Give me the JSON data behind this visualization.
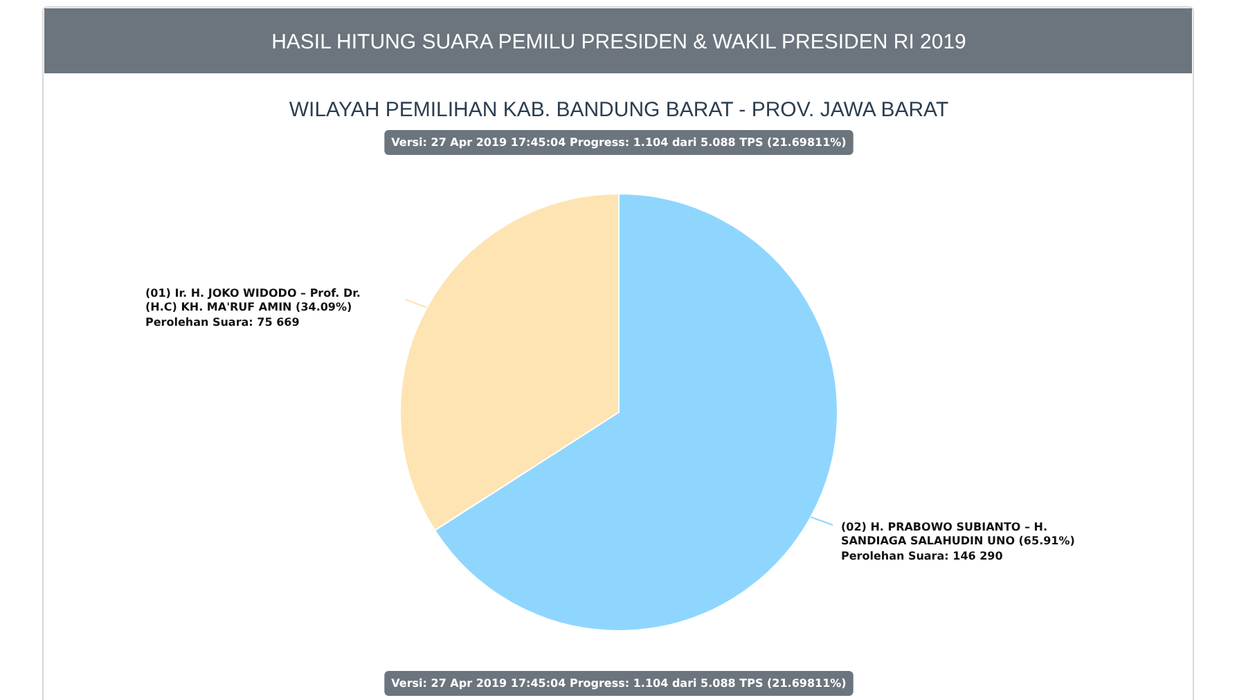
{
  "chart_data": {
    "type": "pie",
    "title": "HASIL HITUNG SUARA PEMILU PRESIDEN & WAKIL PRESIDEN RI 2019",
    "subtitle": "WILAYAH PEMILIHAN KAB. BANDUNG BARAT - PROV. JAWA BARAT",
    "categories": [
      "(01) Ir. H. JOKO WIDODO – Prof. Dr. (H.C) KH. MA'RUF AMIN (34.09%)",
      "(02) H. PRABOWO SUBIANTO – H. SANDIAGA SALAHUDIN UNO (65.91%)"
    ],
    "values": [
      75669,
      146290
    ],
    "colors": [
      "#fee4b3",
      "#8fd6fe"
    ],
    "value_labels": [
      "Perolehan Suara: 75 669",
      "Perolehan Suara: 146 290"
    ],
    "annotations": [
      "Versi: 27 Apr 2019 17:45:04 Progress: 1.104 dari 5.088 TPS (21.69811%)",
      "Versi: 27 Apr 2019 17:45:04 Progress: 1.104 dari 5.088 TPS (21.69811%)"
    ]
  }
}
